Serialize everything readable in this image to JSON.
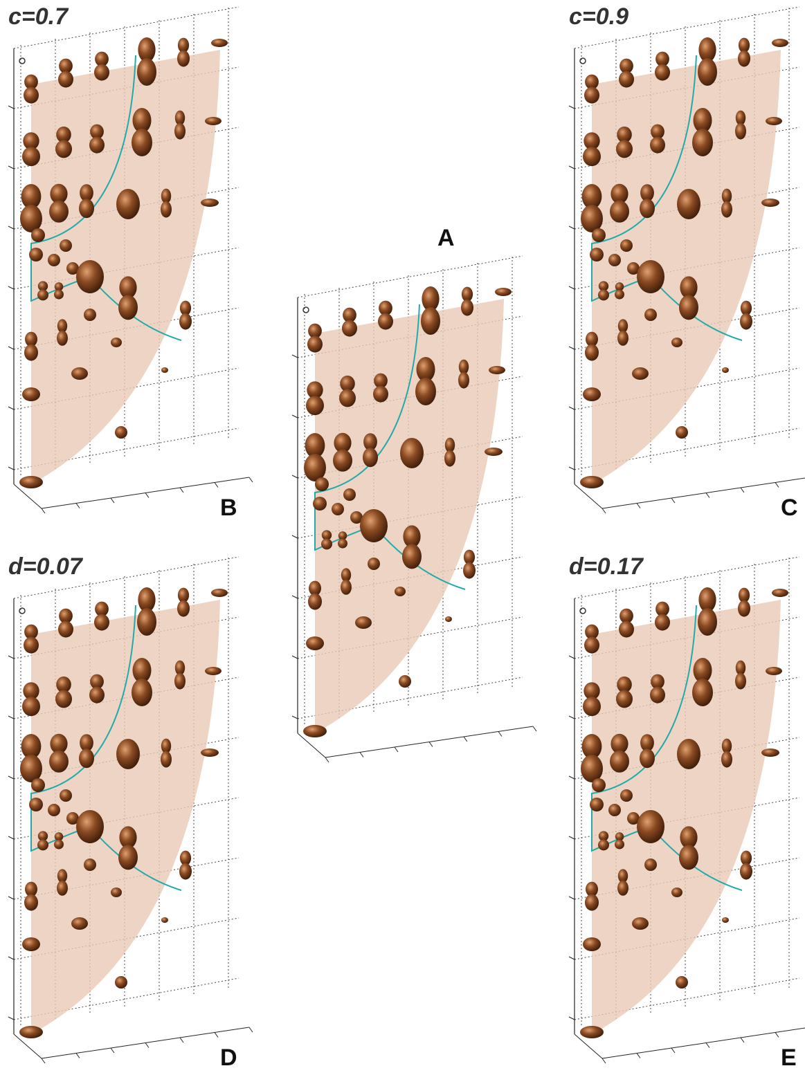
{
  "panels": [
    {
      "id": "A"
    },
    {
      "id": "B",
      "parameter": "c=0.7"
    },
    {
      "id": "C",
      "parameter": "c=0.9"
    },
    {
      "id": "D",
      "parameter": "d=0.07"
    },
    {
      "id": "E",
      "parameter": "d=0.17"
    }
  ]
}
